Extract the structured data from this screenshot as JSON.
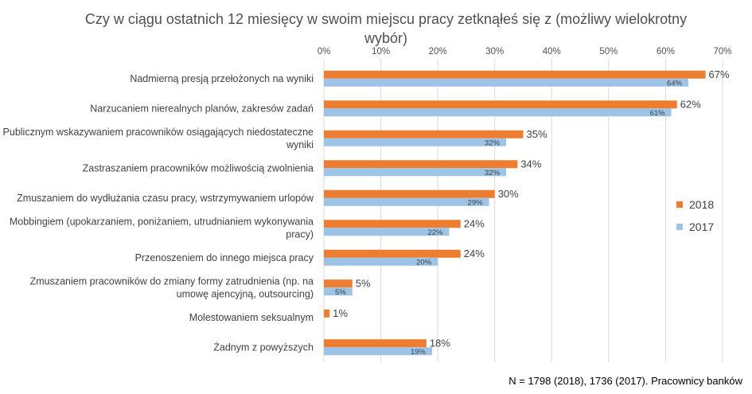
{
  "chart_data": {
    "type": "bar",
    "orientation": "horizontal",
    "title": "Czy w ciągu ostatnich 12 miesięcy w swoim miejscu pracy zetknąłeś się z (możliwy wielokrotny wybór)",
    "categories": [
      [
        "Nadmierną presją przełożonych na wyniki"
      ],
      [
        "Narzucaniem nierealnych planów, zakresów zadań"
      ],
      [
        "Publicznym wskazywaniem pracowników osiągających niedostateczne",
        "wyniki"
      ],
      [
        "Zastraszaniem pracowników możliwością zwolnienia"
      ],
      [
        "Zmuszaniem do wydłużania czasu pracy, wstrzymywaniem urlopów"
      ],
      [
        "Mobbingiem (upokarzaniem, poniżaniem, utrudnianiem wykonywania",
        "pracy)"
      ],
      [
        "Przenoszeniem do innego miejsca pracy"
      ],
      [
        "Zmuszaniem pracowników do zmiany formy zatrudnienia (np. na",
        "umowę ajencyjną, outsourcing)"
      ],
      [
        "Molestowaniem seksualnym"
      ],
      [
        "Żadnym z powyższych"
      ]
    ],
    "series": [
      {
        "name": "2018",
        "color": "#ED7D31",
        "values": [
          67,
          62,
          35,
          34,
          30,
          24,
          24,
          5,
          1,
          18
        ],
        "labels": [
          "67%",
          "62%",
          "35%",
          "34%",
          "30%",
          "24%",
          "24%",
          "5%",
          "1%",
          "18%"
        ]
      },
      {
        "name": "2017",
        "color": "#9DC3E6",
        "values": [
          64,
          61,
          32,
          32,
          29,
          22,
          20,
          5,
          null,
          19
        ],
        "labels": [
          "64%",
          "61%",
          "32%",
          "32%",
          "29%",
          "22%",
          "20%",
          "5%",
          "",
          "19%"
        ]
      }
    ],
    "xlim": [
      0,
      70
    ],
    "xticks": [
      "0%",
      "10%",
      "20%",
      "30%",
      "40%",
      "50%",
      "60%",
      "70%"
    ],
    "grid": true,
    "legend_position": "right"
  },
  "footnote": "N = 1798 (2018), 1736 (2017). Pracownicy banków"
}
